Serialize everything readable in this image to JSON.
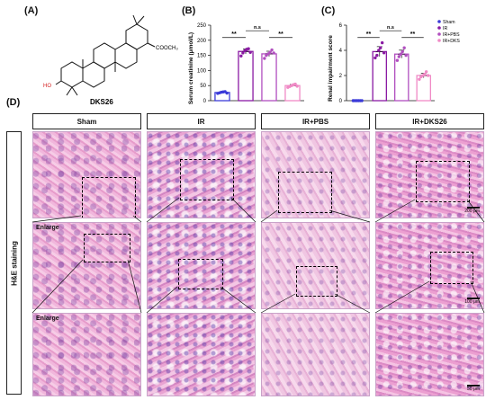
{
  "panels": {
    "A": "(A)",
    "B": "(B)",
    "C": "(C)",
    "D": "(D)"
  },
  "molecule": {
    "name": "DKS26",
    "ester_label": "COOCH₃",
    "ho_label": "HO"
  },
  "colors": {
    "sham": "#3b3bd8",
    "ir": "#8a1aa3",
    "ir_pbs": "#b14fbf",
    "ir_dks": "#f08ac6"
  },
  "chart_data": [
    {
      "type": "bar",
      "categories": [
        "Sham",
        "IR",
        "IR+PBS",
        "IR+DKS26"
      ],
      "values": [
        27,
        163,
        155,
        50
      ],
      "points": [
        [
          24,
          26,
          28,
          29,
          30,
          25
        ],
        [
          148,
          158,
          165,
          170,
          172,
          160
        ],
        [
          140,
          150,
          155,
          160,
          168,
          158
        ],
        [
          44,
          47,
          50,
          53,
          55,
          48
        ]
      ],
      "ylabel": "Serum creatinine (μmol/L)",
      "ylim": [
        0,
        250
      ],
      "yticks": [
        "0",
        "50",
        "100",
        "150",
        "200",
        "250"
      ],
      "annotations": [
        "**",
        "n.s",
        "**"
      ]
    },
    {
      "type": "bar",
      "categories": [
        "Sham",
        "IR",
        "IR+PBS",
        "IR+DKS"
      ],
      "values": [
        0,
        3.9,
        3.7,
        2.0
      ],
      "points": [
        [
          0,
          0,
          0,
          0,
          0,
          0
        ],
        [
          3.4,
          3.6,
          4.0,
          4.2,
          4.6,
          3.8
        ],
        [
          3.2,
          3.5,
          3.7,
          3.9,
          4.2,
          3.6
        ],
        [
          1.7,
          1.9,
          2.0,
          2.1,
          2.3,
          2.0
        ]
      ],
      "ylabel": "Renal impairment score",
      "ylim": [
        0,
        6
      ],
      "yticks": [
        "0",
        "2",
        "4",
        "6"
      ],
      "legend": [
        "Sham",
        "IR",
        "IR+PBS",
        "IR+DKS"
      ],
      "legend_position": "top-right",
      "annotations": [
        "**",
        "n.s",
        "**"
      ]
    }
  ],
  "columns": [
    "Sham",
    "IR",
    "IR+PBS",
    "IR+DKS26"
  ],
  "row_label": "H&E staining",
  "enlarge_label": "Enlarge",
  "scale": {
    "s1": "200 μm",
    "s2": "100 μm",
    "s3": "50 μm"
  }
}
